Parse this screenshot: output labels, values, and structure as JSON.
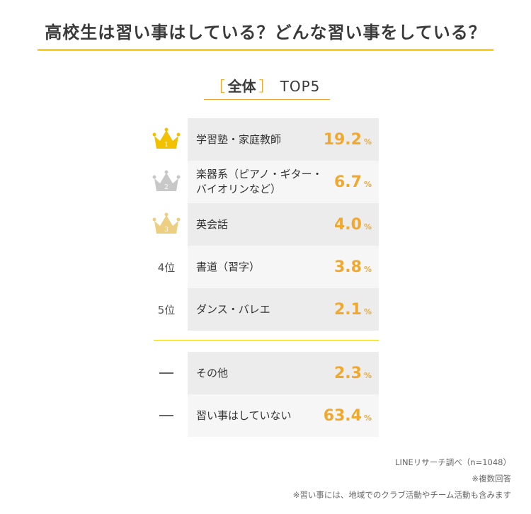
{
  "title": "高校生は習い事はしている？どんな習い事をしている？",
  "subtitle": {
    "bracket_open": "［",
    "scope": "全体",
    "bracket_close": "］",
    "label": "TOP5"
  },
  "colors": {
    "accent": "#f0a92e",
    "rule": "#f6d21d",
    "gold": "#f2c200",
    "silver": "#c8c8c8",
    "bronze": "#eccf80"
  },
  "chart_data": {
    "type": "table",
    "unit": "%",
    "rows": [
      {
        "rank_icon": "crown-gold-icon",
        "rank_no": "1",
        "label": "学習塾・家庭教師",
        "value": 19.2
      },
      {
        "rank_icon": "crown-silver-icon",
        "rank_no": "2",
        "label": "楽器系（ピアノ・ギター・バイオリンなど）",
        "value": 6.7
      },
      {
        "rank_icon": "crown-bronze-icon",
        "rank_no": "3",
        "label": "英会話",
        "value": 4.0
      },
      {
        "rank_text": "4位",
        "label": "書道（習字）",
        "value": 3.8
      },
      {
        "rank_text": "5位",
        "label": "ダンス・バレエ",
        "value": 2.1
      },
      {
        "rank_text": "ー",
        "label": "その他",
        "value": 2.3
      },
      {
        "rank_text": "ー",
        "label": "習い事はしていない",
        "value": 63.4
      }
    ]
  },
  "notes": [
    "LINEリサーチ調べ（n=1048）",
    "※複数回答",
    "※習い事には、地域でのクラブ活動やチーム活動も含みます"
  ]
}
